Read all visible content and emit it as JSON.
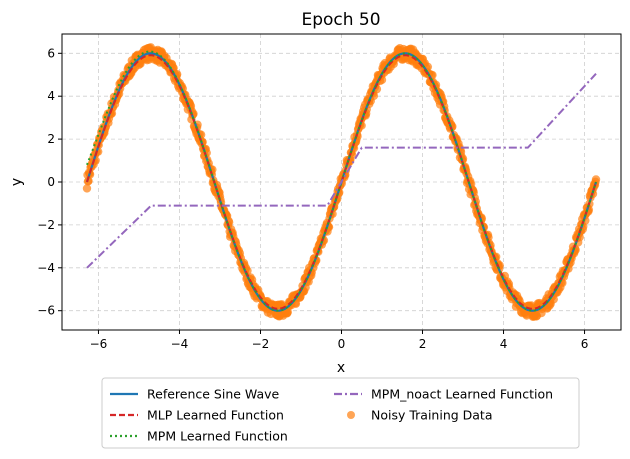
{
  "chart_data": {
    "type": "line",
    "title": "Epoch 50",
    "xlabel": "x",
    "ylabel": "y",
    "xlim": [
      -6.9,
      6.9
    ],
    "ylim": [
      -6.9,
      6.9
    ],
    "xticks": [
      -6,
      -4,
      -2,
      0,
      2,
      4,
      6
    ],
    "yticks": [
      -6,
      -4,
      -2,
      0,
      2,
      4,
      6
    ],
    "grid": true,
    "legend_position": "below",
    "amplitude": 6,
    "x_range": [
      -6.283,
      6.283
    ],
    "series": [
      {
        "name": "Reference Sine Wave",
        "kind": "line",
        "style": "solid",
        "color": "#1f77b4",
        "formula": "6*sin(x)"
      },
      {
        "name": "MLP Learned Function",
        "kind": "line",
        "style": "dashed",
        "color": "#d62728",
        "formula": "approx 6*sin(x)"
      },
      {
        "name": "MPM Learned Function",
        "kind": "line",
        "style": "dotted",
        "color": "#2ca02c",
        "formula": "approx 6*sin(x)",
        "start_value": 0.8
      },
      {
        "name": "MPM_noact Learned Function",
        "kind": "line",
        "style": "dashdot",
        "color": "#9467bd",
        "points": [
          [
            -6.283,
            -4.0
          ],
          [
            -4.7,
            -1.1
          ],
          [
            -0.35,
            -1.1
          ],
          [
            0.5,
            1.6
          ],
          [
            4.6,
            1.6
          ],
          [
            6.283,
            5.05
          ]
        ]
      },
      {
        "name": "Noisy Training Data",
        "kind": "scatter",
        "color": "#ff7f0e",
        "formula": "6*sin(x) + noise",
        "count": 1000
      }
    ]
  }
}
